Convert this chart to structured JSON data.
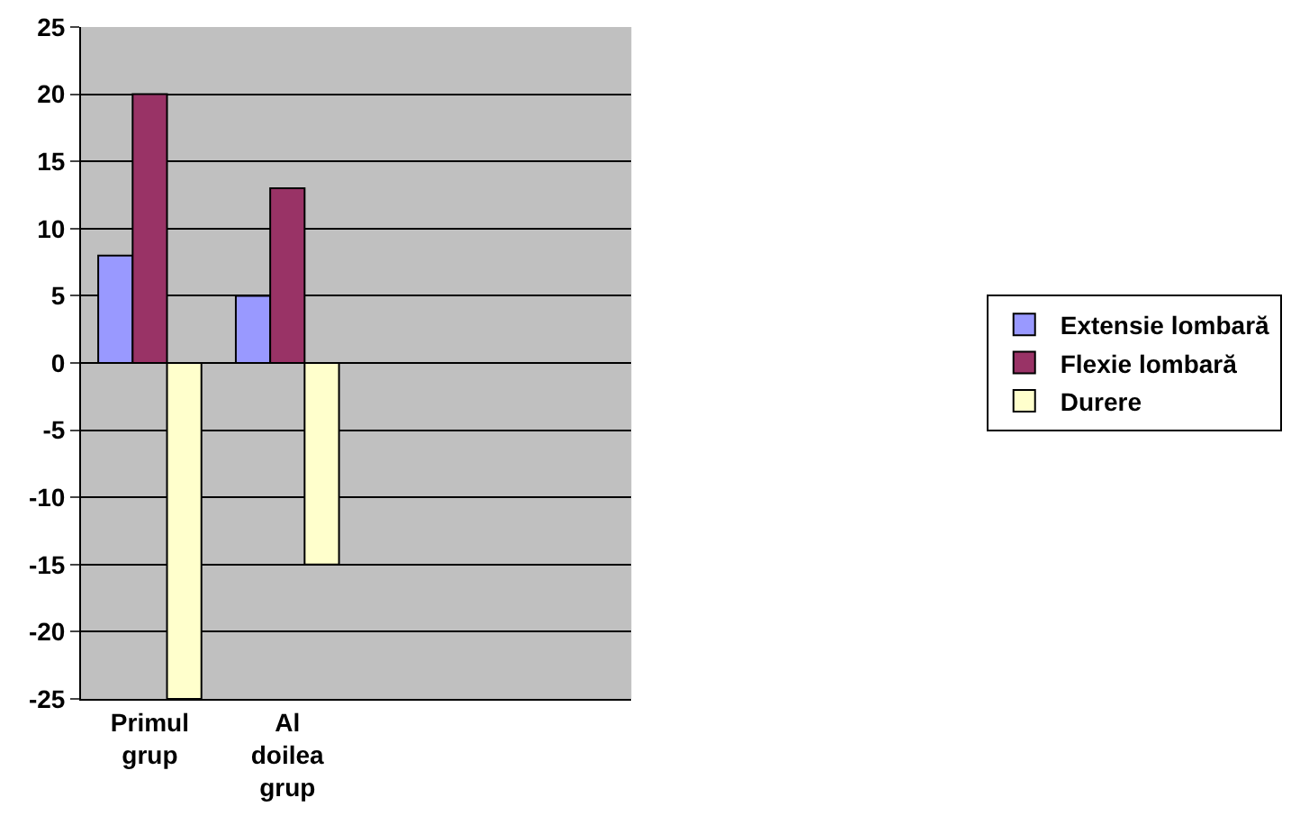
{
  "chart_data": {
    "type": "bar",
    "categories": [
      "Primul grup",
      "Al doilea grup",
      null,
      null
    ],
    "series": [
      {
        "name": "Extensie lombară",
        "color": "#9999ff",
        "values": [
          8,
          5,
          null,
          null
        ]
      },
      {
        "name": "Flexie lombară",
        "color": "#993366",
        "values": [
          20,
          13,
          null,
          null
        ]
      },
      {
        "name": "Durere",
        "color": "#ffffcc",
        "values": [
          -25,
          -15,
          null,
          null
        ]
      }
    ],
    "ylim": [
      -25,
      25
    ],
    "yticks": [
      -25,
      -20,
      -15,
      -10,
      -5,
      0,
      5,
      10,
      15,
      20,
      25
    ],
    "grid": "y",
    "legend": "right"
  }
}
